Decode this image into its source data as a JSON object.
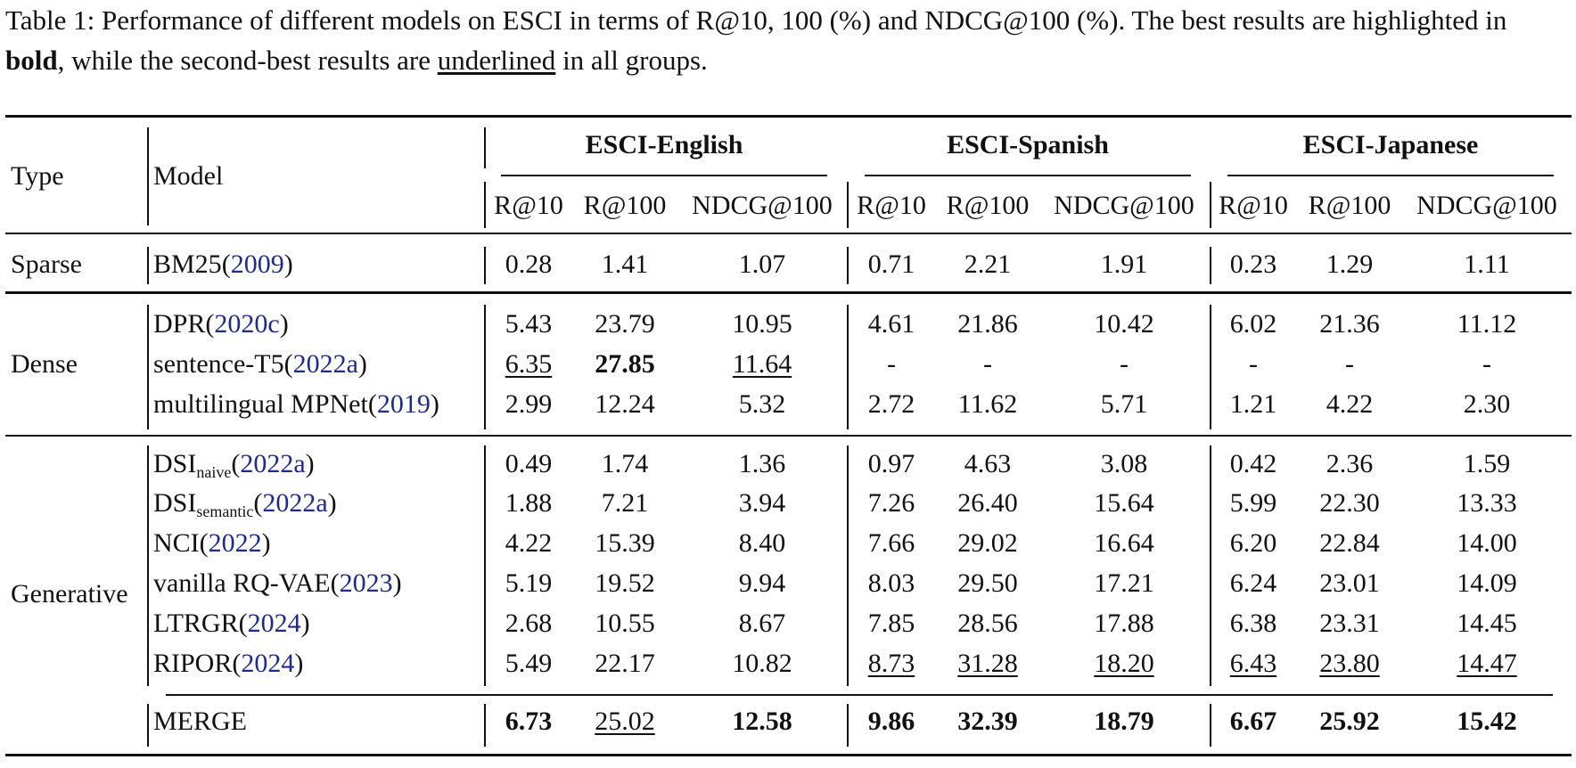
{
  "caption": {
    "prefix": "Table 1: Performance of different models on ESCI in terms of R@10, 100 (%) and NDCG@100 (%). The best results are highlighted in ",
    "bold_word": "bold",
    "middle": ", while the second-best results are ",
    "underlined_word": "underlined",
    "suffix": " in all groups."
  },
  "header": {
    "type": "Type",
    "model": "Model",
    "groups": [
      "ESCI-English",
      "ESCI-Spanish",
      "ESCI-Japanese"
    ],
    "metrics": [
      "R@10",
      "R@100",
      "NDCG@100"
    ]
  },
  "sections": [
    {
      "type": "Sparse",
      "rows": [
        {
          "model": "BM25",
          "sub": "",
          "cite": "2009",
          "values": [
            "0.28",
            "1.41",
            "1.07",
            "0.71",
            "2.21",
            "1.91",
            "0.23",
            "1.29",
            "1.11"
          ],
          "styles": [
            "",
            "",
            "",
            "",
            "",
            "",
            "",
            "",
            ""
          ]
        }
      ]
    },
    {
      "type": "Dense",
      "rows": [
        {
          "model": "DPR",
          "sub": "",
          "cite": "2020c",
          "values": [
            "5.43",
            "23.79",
            "10.95",
            "4.61",
            "21.86",
            "10.42",
            "6.02",
            "21.36",
            "11.12"
          ],
          "styles": [
            "",
            "",
            "",
            "",
            "",
            "",
            "",
            "",
            ""
          ]
        },
        {
          "model": "sentence-T5",
          "sub": "",
          "cite": "2022a",
          "values": [
            "6.35",
            "27.85",
            "11.64",
            "-",
            "-",
            "-",
            "-",
            "-",
            "-"
          ],
          "styles": [
            "ul",
            "bold",
            "ul",
            "",
            "",
            "",
            "",
            "",
            ""
          ]
        },
        {
          "model": "multilingual MPNet",
          "sub": "",
          "cite": "2019",
          "values": [
            "2.99",
            "12.24",
            "5.32",
            "2.72",
            "11.62",
            "5.71",
            "1.21",
            "4.22",
            "2.30"
          ],
          "styles": [
            "",
            "",
            "",
            "",
            "",
            "",
            "",
            "",
            ""
          ]
        }
      ]
    },
    {
      "type": "Generative",
      "rows": [
        {
          "model": "DSI",
          "sub": "naive",
          "cite": "2022a",
          "values": [
            "0.49",
            "1.74",
            "1.36",
            "0.97",
            "4.63",
            "3.08",
            "0.42",
            "2.36",
            "1.59"
          ],
          "styles": [
            "",
            "",
            "",
            "",
            "",
            "",
            "",
            "",
            ""
          ]
        },
        {
          "model": "DSI",
          "sub": "semantic",
          "cite": "2022a",
          "values": [
            "1.88",
            "7.21",
            "3.94",
            "7.26",
            "26.40",
            "15.64",
            "5.99",
            "22.30",
            "13.33"
          ],
          "styles": [
            "",
            "",
            "",
            "",
            "",
            "",
            "",
            "",
            ""
          ]
        },
        {
          "model": "NCI",
          "sub": "",
          "cite": "2022",
          "values": [
            "4.22",
            "15.39",
            "8.40",
            "7.66",
            "29.02",
            "16.64",
            "6.20",
            "22.84",
            "14.00"
          ],
          "styles": [
            "",
            "",
            "",
            "",
            "",
            "",
            "",
            "",
            ""
          ]
        },
        {
          "model": "vanilla RQ-VAE",
          "sub": "",
          "cite": "2023",
          "values": [
            "5.19",
            "19.52",
            "9.94",
            "8.03",
            "29.50",
            "17.21",
            "6.24",
            "23.01",
            "14.09"
          ],
          "styles": [
            "",
            "",
            "",
            "",
            "",
            "",
            "",
            "",
            ""
          ]
        },
        {
          "model": "LTRGR",
          "sub": "",
          "cite": "2024",
          "values": [
            "2.68",
            "10.55",
            "8.67",
            "7.85",
            "28.56",
            "17.88",
            "6.38",
            "23.31",
            "14.45"
          ],
          "styles": [
            "",
            "",
            "",
            "",
            "",
            "",
            "",
            "",
            ""
          ]
        },
        {
          "model": "RIPOR",
          "sub": "",
          "cite": "2024",
          "values": [
            "5.49",
            "22.17",
            "10.82",
            "8.73",
            "31.28",
            "18.20",
            "6.43",
            "23.80",
            "14.47"
          ],
          "styles": [
            "",
            "",
            "",
            "ul",
            "ul",
            "ul",
            "ul",
            "ul",
            "ul"
          ]
        },
        {
          "model": "MERGE",
          "sub": "",
          "cite": "",
          "values": [
            "6.73",
            "25.02",
            "12.58",
            "9.86",
            "32.39",
            "18.79",
            "6.67",
            "25.92",
            "15.42"
          ],
          "styles": [
            "bold",
            "ul",
            "bold",
            "bold",
            "bold",
            "bold",
            "bold",
            "bold",
            "bold"
          ]
        }
      ]
    }
  ]
}
